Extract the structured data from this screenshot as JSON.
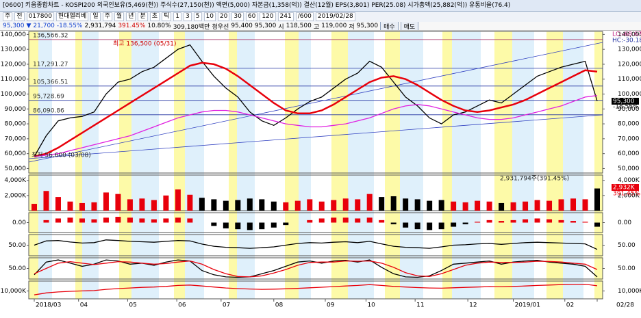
{
  "window": {
    "title": "[0600] 키움종합차트 - KOSPI200 외국인보유(5,469(천)) 주식수(27,150(천)) 액면(5,000) 자본금(1,358(억)) 결산(12월) EPS(3,801) PER(25.08) 시가총액(25,882(억)) 유통비율(76.4)",
    "toolbar": [
      "주",
      "전",
      "017800",
      "현대엘리베",
      "일",
      "주",
      "월",
      "년",
      "분",
      "초",
      "틱",
      "1",
      "3",
      "5",
      "10",
      "20",
      "30",
      "60",
      "120",
      "241",
      "/600",
      "2019/02/28"
    ],
    "info": [
      "95,300",
      "▼",
      "21,700",
      "-18.55%",
      "2,931,794",
      "391.45%",
      "10.80%",
      "309,180백만",
      "청우선",
      "95,400",
      "95,300",
      "시",
      "118,500",
      "고",
      "119,000",
      "저",
      "95,300"
    ],
    "buttons": [
      "매수",
      "매도"
    ]
  },
  "chart_data": [
    {
      "type": "line",
      "ylim": [
        47000,
        142000
      ],
      "yticks": [
        {
          "value": 140000,
          "label": "140,000"
        },
        {
          "value": 130000,
          "label": "130,000"
        },
        {
          "value": 120000,
          "label": "120,000"
        },
        {
          "value": 110000,
          "label": "110,000"
        },
        {
          "value": 100000,
          "label": "100,000"
        },
        {
          "value": 90000,
          "label": "90,000"
        },
        {
          "value": 80000,
          "label": "80,000"
        },
        {
          "value": 70000,
          "label": "70,000"
        },
        {
          "value": 60000,
          "label": "60,000"
        },
        {
          "value": 50000,
          "label": "50,000"
        }
      ],
      "xticks": [
        {
          "value": 0,
          "label": "2018/03"
        },
        {
          "value": 3.7,
          "label": "04"
        },
        {
          "value": 7.8,
          "label": "05"
        },
        {
          "value": 11.9,
          "label": "06"
        },
        {
          "value": 15.6,
          "label": "07"
        },
        {
          "value": 20,
          "label": "08"
        },
        {
          "value": 24.3,
          "label": "09"
        },
        {
          "value": 27.7,
          "label": "10"
        },
        {
          "value": 31.8,
          "label": "11"
        },
        {
          "value": 36.2,
          "label": "12"
        },
        {
          "value": 40,
          "label": "2019/01"
        },
        {
          "value": 44.3,
          "label": "02"
        },
        {
          "value": 47,
          "label": "02/28"
        }
      ],
      "levels": [
        {
          "value": 136566.32,
          "label": "136,566.32"
        },
        {
          "value": 117291.27,
          "label": "117,291.27"
        },
        {
          "value": 105366.51,
          "label": "105,366.51"
        },
        {
          "value": 95728.69,
          "label": "95,728.69"
        },
        {
          "value": 86090.86,
          "label": "86,090.86"
        }
      ],
      "annotations": [
        "최고 136,500 (05/31)",
        "최저 56,600 (03/08)"
      ],
      "right_labels": [
        "LC:-68.67",
        "HC:-30.18"
      ],
      "last_labels": [
        "95,300",
        "-18.55%"
      ],
      "series": [
        {
          "color": "#000000",
          "values": [
            58000,
            72000,
            82000,
            84000,
            85000,
            88000,
            100000,
            108000,
            110000,
            115000,
            118000,
            124000,
            130000,
            133000,
            122000,
            112000,
            104000,
            98000,
            88000,
            82000,
            79000,
            84000,
            90000,
            95000,
            98000,
            104000,
            110000,
            114000,
            122000,
            118000,
            108000,
            98000,
            92000,
            84000,
            80000,
            86000,
            88000,
            92000,
            96000,
            94000,
            100000,
            106000,
            112000,
            115000,
            118000,
            120000,
            122000,
            95300
          ]
        },
        {
          "color": "#e8000b",
          "values": [
            58000,
            60000,
            64000,
            69000,
            74000,
            79000,
            84000,
            89000,
            94000,
            99000,
            104000,
            109000,
            114000,
            119000,
            121000,
            120000,
            117000,
            112000,
            106000,
            100000,
            94000,
            89000,
            87000,
            87000,
            89000,
            93000,
            98000,
            103000,
            108000,
            111000,
            112000,
            110000,
            106000,
            101000,
            96000,
            92000,
            89000,
            88000,
            89000,
            91000,
            93000,
            96000,
            100000,
            104000,
            108000,
            112000,
            116000,
            115000
          ]
        },
        {
          "color": "#e020e0",
          "values": [
            58000,
            59000,
            60000,
            62000,
            64000,
            66000,
            68000,
            70000,
            72000,
            75000,
            78000,
            81000,
            84000,
            86000,
            88000,
            89000,
            89000,
            88000,
            86000,
            84000,
            82000,
            80000,
            79000,
            78000,
            78000,
            79000,
            80000,
            82000,
            84000,
            87000,
            90000,
            92000,
            93000,
            92000,
            90000,
            88000,
            86000,
            84000,
            83000,
            83000,
            84000,
            86000,
            88000,
            90000,
            92000,
            95000,
            98000,
            99000
          ]
        }
      ]
    },
    {
      "type": "bar",
      "ylim": [
        0,
        4700
      ],
      "yticks": [
        {
          "value": 2000,
          "label": "2,000K"
        },
        {
          "value": 4000,
          "label": "4,000K"
        }
      ],
      "annotations": [
        "2,931,794주(391.45%)"
      ],
      "last_labels": [
        "2,932K",
        "391.45%"
      ],
      "series": [
        {
          "color": "#e8000b",
          "negative_color": "#000000",
          "values": [
            900,
            2600,
            1800,
            1200,
            1000,
            1100,
            2400,
            2200,
            1500,
            1600,
            1400,
            2000,
            2800,
            2100,
            1700,
            1500,
            1300,
            1400,
            1600,
            1500,
            1200,
            1100,
            1300,
            1500,
            1200,
            1400,
            1600,
            1500,
            2200,
            1800,
            1900,
            1600,
            1500,
            1300,
            1400,
            1200,
            1100,
            1300,
            1200,
            1000,
            1100,
            1200,
            1400,
            1300,
            1500,
            1600,
            1500,
            2932
          ]
        }
      ]
    },
    {
      "type": "bar",
      "ylim": [
        -6000,
        6000
      ],
      "yticks": [
        {
          "value": 0,
          "label": "0.00"
        }
      ],
      "series": [
        {
          "color": "#e8000b",
          "negative_color": "#000000",
          "values": [
            0,
            1500,
            2500,
            3000,
            2500,
            2000,
            3000,
            3500,
            3000,
            2500,
            2000,
            2500,
            3000,
            2500,
            0,
            -2000,
            -3500,
            -4000,
            -4500,
            -4000,
            -3000,
            -1500,
            0,
            1500,
            2500,
            3000,
            3000,
            2500,
            3000,
            1500,
            -1000,
            -3000,
            -4000,
            -4500,
            -4000,
            -2500,
            -1000,
            500,
            1500,
            1000,
            1500,
            2000,
            2500,
            2000,
            1500,
            1000,
            500,
            -2500
          ]
        }
      ]
    },
    {
      "type": "line",
      "ylim": [
        0,
        100
      ],
      "yticks": [
        {
          "value": 50,
          "label": "50.00"
        }
      ],
      "series": [
        {
          "color": "#000000",
          "values": [
            50,
            70,
            72,
            65,
            60,
            62,
            75,
            72,
            68,
            66,
            64,
            68,
            72,
            70,
            55,
            45,
            40,
            38,
            35,
            38,
            42,
            50,
            58,
            62,
            60,
            64,
            66,
            62,
            68,
            56,
            45,
            40,
            38,
            35,
            42,
            50,
            52,
            56,
            58,
            54,
            58,
            62,
            64,
            62,
            60,
            58,
            56,
            30
          ]
        }
      ]
    },
    {
      "type": "line",
      "ylim": [
        0,
        100
      ],
      "yticks": [
        {
          "value": 50,
          "label": "50.00"
        }
      ],
      "series": [
        {
          "color": "#000000",
          "values": [
            20,
            80,
            90,
            75,
            60,
            70,
            90,
            85,
            70,
            75,
            65,
            80,
            90,
            85,
            40,
            20,
            10,
            8,
            10,
            25,
            40,
            60,
            80,
            85,
            75,
            85,
            88,
            80,
            90,
            55,
            25,
            10,
            8,
            15,
            40,
            70,
            75,
            80,
            85,
            70,
            80,
            85,
            88,
            80,
            75,
            70,
            60,
            10
          ]
        },
        {
          "color": "#e8000b",
          "values": [
            25,
            50,
            75,
            82,
            75,
            68,
            75,
            82,
            80,
            75,
            70,
            73,
            80,
            85,
            70,
            45,
            25,
            12,
            10,
            15,
            28,
            45,
            65,
            78,
            80,
            80,
            85,
            84,
            85,
            75,
            55,
            30,
            15,
            12,
            25,
            45,
            65,
            75,
            80,
            78,
            78,
            80,
            84,
            83,
            80,
            75,
            70,
            45
          ]
        }
      ]
    },
    {
      "type": "line",
      "ylim": [
        6000,
        15000
      ],
      "yticks": [
        {
          "value": 10000,
          "label": "10,000K"
        }
      ],
      "series": [
        {
          "color": "#e8000b",
          "values": [
            8000,
            9000,
            9500,
            9800,
            10000,
            10200,
            10800,
            11200,
            11500,
            11800,
            12000,
            12300,
            12800,
            13000,
            12500,
            12000,
            11500,
            11200,
            11000,
            10800,
            10900,
            11100,
            11300,
            11600,
            11900,
            12200,
            12500,
            12800,
            13200,
            12800,
            12300,
            12000,
            11700,
            11500,
            11400,
            11600,
            11800,
            12000,
            12200,
            12100,
            12300,
            12500,
            12800,
            13000,
            13200,
            13300,
            13400,
            12600
          ]
        }
      ]
    }
  ]
}
